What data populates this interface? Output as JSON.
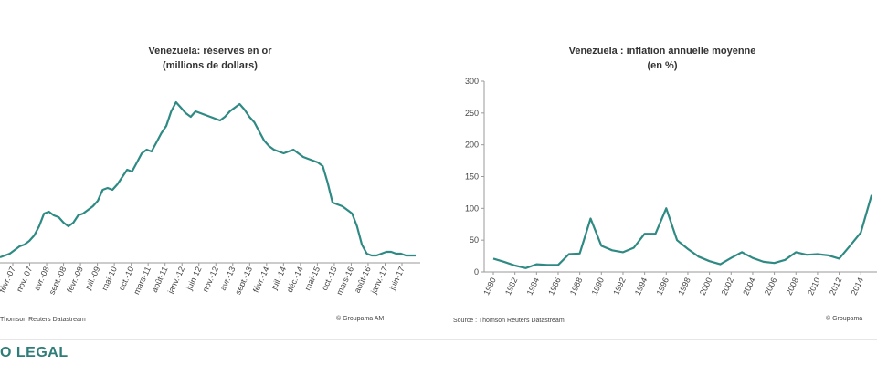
{
  "left_chart": {
    "title_line1": "Venezuela: réserves en or",
    "title_line2": "(millions de dollars)",
    "source": "Thomson Reuters Datastream",
    "credit": "© Groupama AM"
  },
  "right_chart": {
    "title_line1": "Venezuela : inflation annuelle moyenne",
    "title_line2": "(en %)",
    "source": "Source : Thomson Reuters Datastream",
    "credit": "© Groupama"
  },
  "footer": {
    "brand": "O LEGAL"
  },
  "colors": {
    "line": "#2f8a84",
    "axis": "#9a9a9a",
    "brand": "#2f7d78"
  },
  "chart_data": [
    {
      "type": "line",
      "title": "Venezuela: réserves en or (millions de dollars)",
      "ylim": [
        0,
        100
      ],
      "x_tick_labels": [
        "févr.-07",
        "nov.-07",
        "avr.-08",
        "sept.-08",
        "févr.-09",
        "juil.-09",
        "mai-10",
        "oct.-10",
        "mars-11",
        "août-11",
        "janv.-12",
        "juin-12",
        "nov.-12",
        "avr.-13",
        "sept.-13",
        "févr.-14",
        "juil.-14",
        "déc.-14",
        "mai-15",
        "oct.-15",
        "mars-16",
        "août-16",
        "janv.-17",
        "juin-17"
      ],
      "series": [
        {
          "values": [
            3,
            4,
            5,
            7,
            9,
            10,
            12,
            15,
            20,
            27,
            28,
            26,
            25,
            22,
            20,
            22,
            26,
            27,
            29,
            31,
            34,
            40,
            41,
            40,
            43,
            47,
            51,
            50,
            55,
            60,
            62,
            61,
            66,
            71,
            75,
            83,
            88,
            85,
            82,
            80,
            83,
            82,
            81,
            80,
            79,
            78,
            80,
            83,
            85,
            87,
            84,
            80,
            77,
            72,
            67,
            64,
            62,
            61,
            60,
            61,
            62,
            60,
            58,
            57,
            56,
            55,
            53,
            44,
            33,
            32,
            31,
            29,
            27,
            20,
            10,
            5,
            4,
            4,
            5,
            6,
            6,
            5,
            5,
            4,
            4,
            4
          ]
        }
      ]
    },
    {
      "type": "line",
      "title": "Venezuela : inflation annuelle moyenne (en %)",
      "xlabel": "",
      "ylabel": "",
      "ylim": [
        0,
        300
      ],
      "yticks": [
        0,
        50,
        100,
        150,
        200,
        250,
        300
      ],
      "x_tick_labels": [
        "1980",
        "1982",
        "1984",
        "1986",
        "1988",
        "1990",
        "1992",
        "1994",
        "1996",
        "1998",
        "2000",
        "2002",
        "2004",
        "2006",
        "2008",
        "2010",
        "2012",
        "2014"
      ],
      "x": [
        1980,
        1981,
        1982,
        1983,
        1984,
        1985,
        1986,
        1987,
        1988,
        1989,
        1990,
        1991,
        1992,
        1993,
        1994,
        1995,
        1996,
        1997,
        1998,
        1999,
        2000,
        2001,
        2002,
        2003,
        2004,
        2005,
        2006,
        2007,
        2008,
        2009,
        2010,
        2011,
        2012,
        2013,
        2014,
        2015
      ],
      "series": [
        {
          "values": [
            21,
            16,
            10,
            6,
            12,
            11,
            11,
            28,
            29,
            84,
            41,
            34,
            31,
            38,
            60,
            60,
            100,
            50,
            36,
            24,
            17,
            12,
            22,
            31,
            22,
            16,
            14,
            19,
            31,
            27,
            28,
            26,
            21,
            41,
            62,
            121
          ]
        }
      ]
    }
  ]
}
